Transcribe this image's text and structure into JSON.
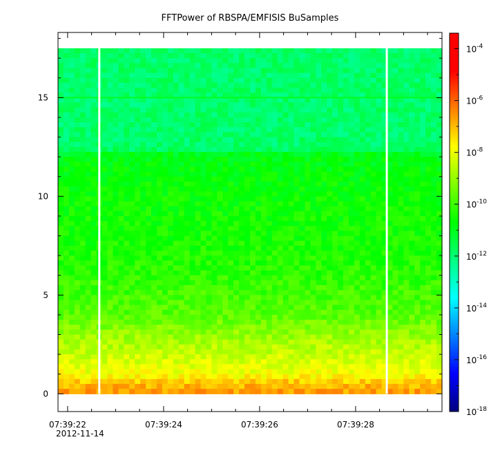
{
  "chart_data": {
    "type": "heatmap",
    "title": "FFTPower of RBSPA/EMFISIS  BuSamples",
    "xlabel": "",
    "ylabel": "",
    "date_label": "2012-11-14",
    "x_tick_labels": [
      "07:39:22",
      "07:39:24",
      "07:39:26",
      "07:39:28"
    ],
    "x_tick_values_sec": [
      22,
      24,
      26,
      28
    ],
    "xlim_sec": [
      21.8,
      29.8
    ],
    "y_ticks": [
      0,
      5,
      10,
      15
    ],
    "ylim": [
      -0.9,
      18.3
    ],
    "data_freq_range": [
      0,
      17.5
    ],
    "data_gaps_sec": [
      22.66,
      28.65
    ],
    "colorbar": {
      "scale": "log",
      "range_exponents": [
        -18,
        -3.4
      ],
      "tick_exponents": [
        -18,
        -16,
        -14,
        -12,
        -10,
        -8,
        -6,
        -4
      ],
      "colors": [
        "#00007f",
        "#0000ff",
        "#0080ff",
        "#00ffff",
        "#00ff80",
        "#00ff00",
        "#80ff00",
        "#ffff00",
        "#ff8000",
        "#ff0000",
        "#ff0000"
      ]
    },
    "power_profile": [
      {
        "freq": 0.0,
        "log_power": -6.6
      },
      {
        "freq": 0.5,
        "log_power": -7.0
      },
      {
        "freq": 1.0,
        "log_power": -7.9
      },
      {
        "freq": 2.0,
        "log_power": -8.4
      },
      {
        "freq": 3.0,
        "log_power": -9.0
      },
      {
        "freq": 4.0,
        "log_power": -9.7
      },
      {
        "freq": 6.0,
        "log_power": -10.2
      },
      {
        "freq": 8.0,
        "log_power": -10.5
      },
      {
        "freq": 10.0,
        "log_power": -10.6
      },
      {
        "freq": 12.1,
        "log_power": -10.9
      },
      {
        "freq": 12.4,
        "log_power": -11.9
      },
      {
        "freq": 14.9,
        "log_power": -11.9
      },
      {
        "freq": 15.0,
        "log_power": -11.0
      },
      {
        "freq": 15.1,
        "log_power": -11.9
      },
      {
        "freq": 17.5,
        "log_power": -11.9
      }
    ]
  }
}
